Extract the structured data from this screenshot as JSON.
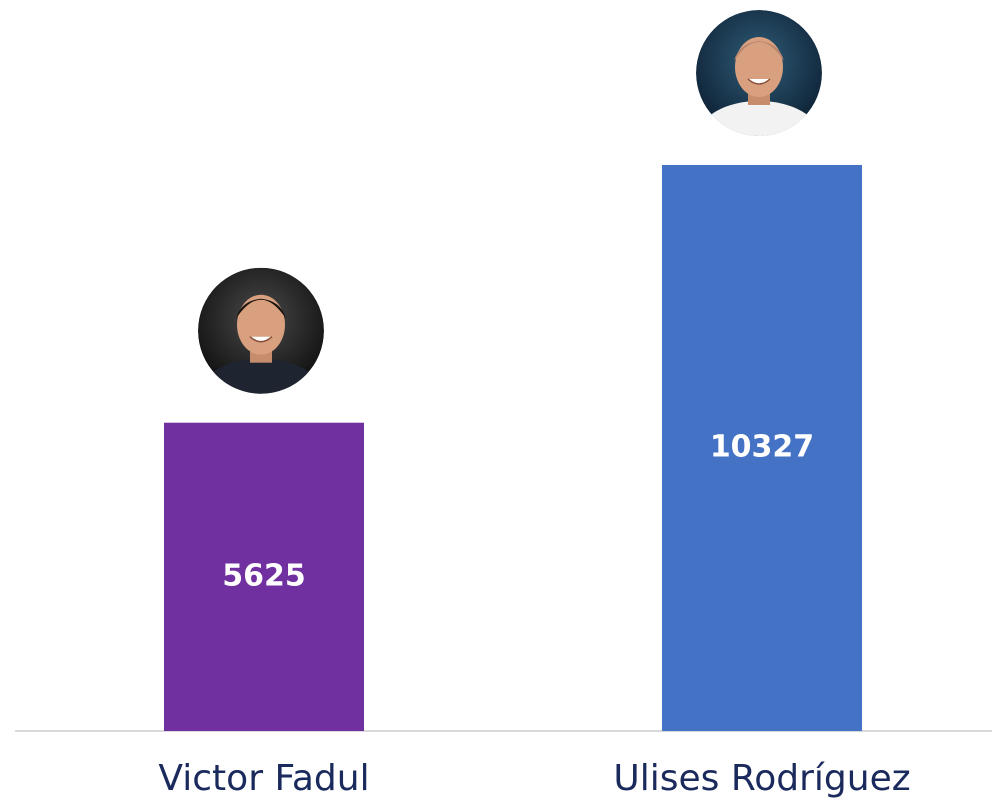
{
  "chart_data": {
    "type": "bar",
    "categories": [
      "Victor Fadul",
      "Ulises Rodríguez"
    ],
    "values": [
      5625,
      10327
    ],
    "colors": [
      "#7030a0",
      "#4472c4"
    ]
  }
}
